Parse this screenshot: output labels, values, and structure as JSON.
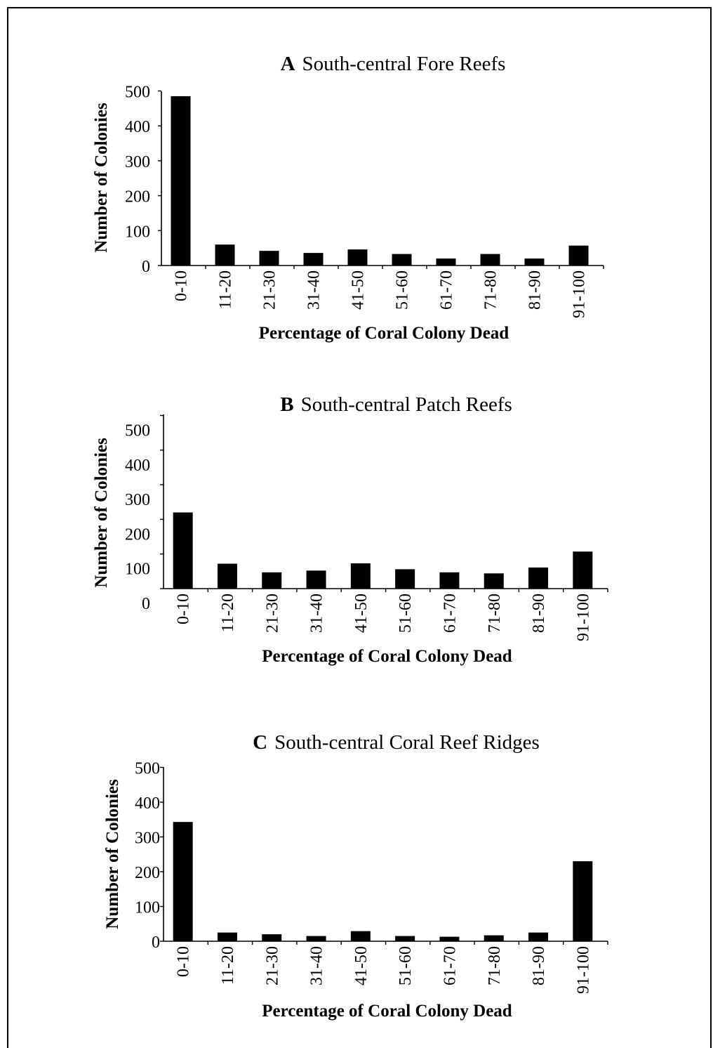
{
  "chart_data": [
    {
      "type": "bar",
      "panel_letter": "A",
      "title": "South-central Fore Reefs",
      "xlabel": "Percentage of Coral Colony Dead",
      "ylabel": "Number of Colonies",
      "categories": [
        "0-10",
        "11-20",
        "21-30",
        "31-40",
        "41-50",
        "51-60",
        "61-70",
        "71-80",
        "81-90",
        "91-100"
      ],
      "values": [
        485,
        60,
        42,
        36,
        46,
        33,
        20,
        33,
        20,
        57
      ],
      "yticks": [
        0,
        100,
        200,
        300,
        400,
        500
      ],
      "ylim": [
        0,
        500
      ],
      "grid": false,
      "bar_color": "#000000"
    },
    {
      "type": "bar",
      "panel_letter": "B",
      "title": "South-central Patch Reefs",
      "xlabel": "Percentage of Coral Colony Dead",
      "ylabel": "Number of Colonies",
      "categories": [
        "0-10",
        "11-20",
        "21-30",
        "31-40",
        "41-50",
        "51-60",
        "61-70",
        "71-80",
        "81-90",
        "91-100"
      ],
      "values": [
        220,
        72,
        47,
        52,
        73,
        56,
        47,
        44,
        61,
        107
      ],
      "yticks": [
        0,
        100,
        200,
        300,
        400,
        500
      ],
      "ylim": [
        0,
        500
      ],
      "grid": false,
      "bar_color": "#000000"
    },
    {
      "type": "bar",
      "panel_letter": "C",
      "title": "South-central Coral Reef Ridges",
      "xlabel": "Percentage of Coral Colony Dead",
      "ylabel": "Number of Colonies",
      "categories": [
        "0-10",
        "11-20",
        "21-30",
        "31-40",
        "41-50",
        "51-60",
        "61-70",
        "71-80",
        "81-90",
        "91-100"
      ],
      "values": [
        343,
        25,
        20,
        15,
        29,
        15,
        13,
        17,
        25,
        230
      ],
      "yticks": [
        0,
        100,
        200,
        300,
        400,
        500
      ],
      "ylim": [
        0,
        500
      ],
      "grid": false,
      "bar_color": "#000000"
    }
  ]
}
